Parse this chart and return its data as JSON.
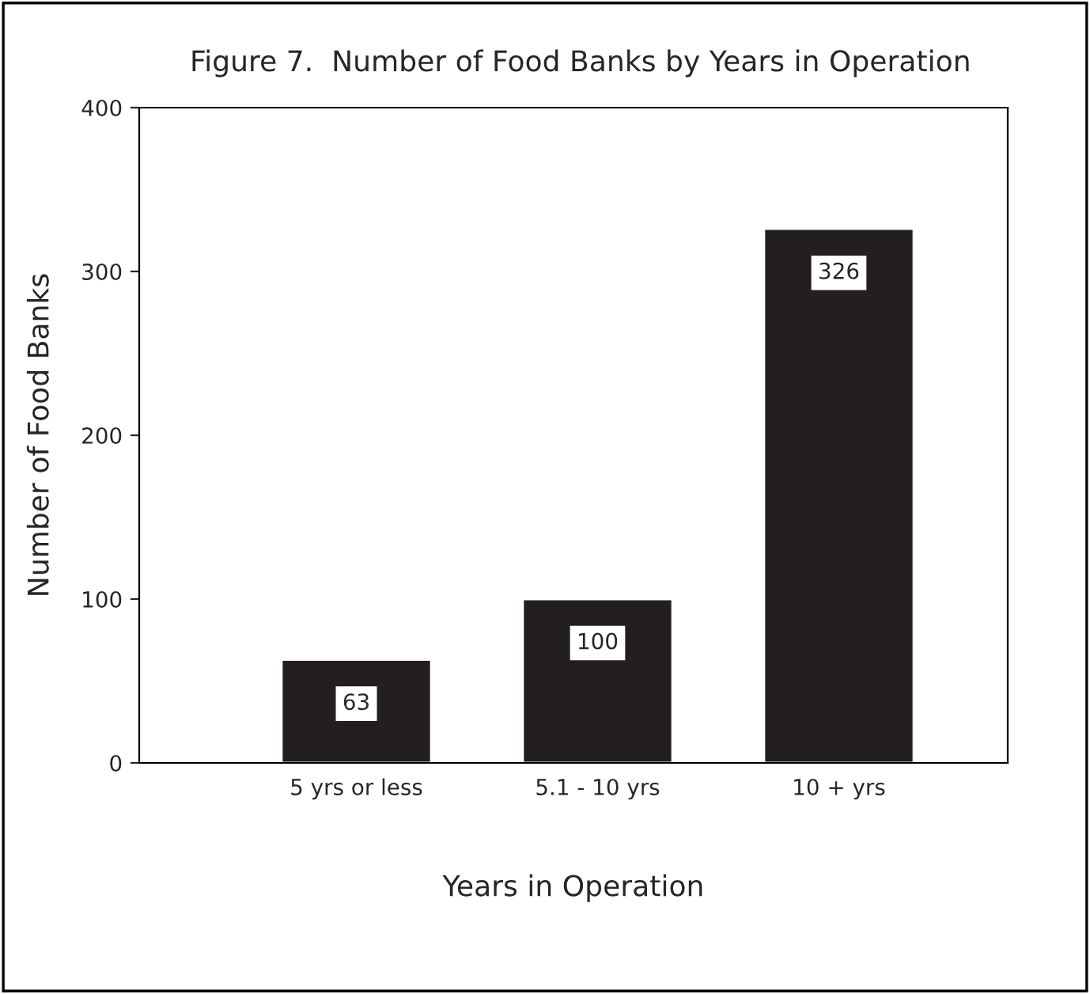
{
  "chart_data": {
    "type": "bar",
    "title": "Figure 7.  Number of Food Banks by Years in Operation",
    "xlabel": "Years in Operation",
    "ylabel": "Number of Food Banks",
    "categories": [
      "5 yrs or less",
      "5.1 - 10 yrs",
      "10 + yrs"
    ],
    "values": [
      63,
      100,
      326
    ],
    "color": "#231f20",
    "ylim": [
      0,
      400
    ],
    "yticks": [
      0,
      100,
      200,
      300,
      400
    ],
    "grid": false,
    "data_labels": true
  }
}
